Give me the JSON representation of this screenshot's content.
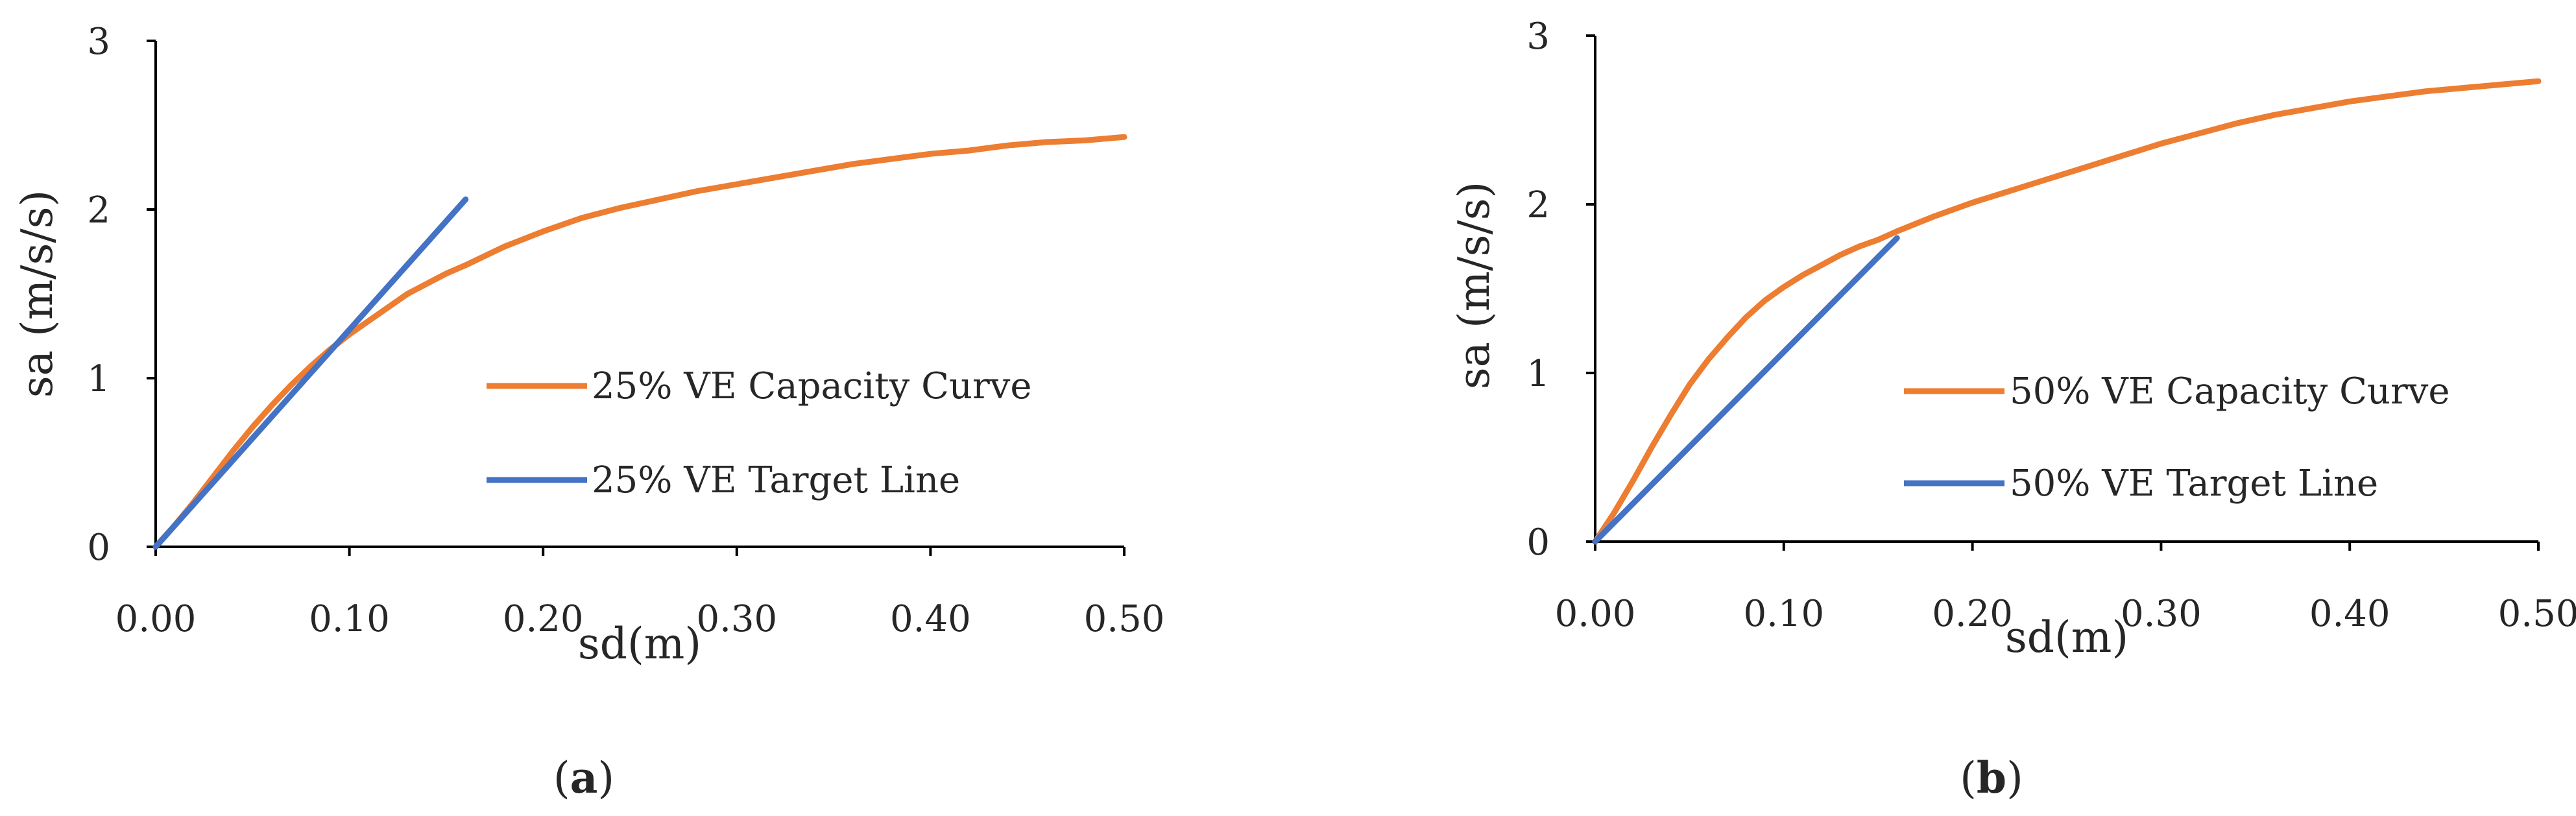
{
  "chart_data": [
    {
      "type": "line",
      "panel_label": "a",
      "xlabel": "sd(m)",
      "ylabel": "sa (m/s/s)",
      "xlim": [
        0,
        0.5
      ],
      "ylim": [
        0,
        3
      ],
      "x_ticks": [
        "0.00",
        "0.10",
        "0.20",
        "0.30",
        "0.40",
        "0.50"
      ],
      "y_ticks": [
        "0",
        "1",
        "2",
        "3"
      ],
      "grid": false,
      "legend_position": "center-right",
      "series": [
        {
          "name": "25% VE Capacity Curve",
          "color": "#ED7D31",
          "x": [
            0,
            0.01,
            0.02,
            0.03,
            0.04,
            0.05,
            0.06,
            0.07,
            0.08,
            0.09,
            0.1,
            0.11,
            0.12,
            0.13,
            0.14,
            0.15,
            0.16,
            0.18,
            0.2,
            0.22,
            0.24,
            0.26,
            0.28,
            0.3,
            0.32,
            0.34,
            0.36,
            0.38,
            0.4,
            0.42,
            0.44,
            0.46,
            0.48,
            0.5
          ],
          "y": [
            0,
            0.13,
            0.27,
            0.42,
            0.57,
            0.71,
            0.84,
            0.96,
            1.07,
            1.17,
            1.26,
            1.34,
            1.42,
            1.5,
            1.56,
            1.62,
            1.67,
            1.78,
            1.87,
            1.95,
            2.01,
            2.06,
            2.11,
            2.15,
            2.19,
            2.23,
            2.27,
            2.3,
            2.33,
            2.35,
            2.38,
            2.4,
            2.41,
            2.43
          ]
        },
        {
          "name": "25% VE Target Line",
          "color": "#4472C4",
          "x": [
            0,
            0.16
          ],
          "y": [
            0,
            2.06
          ]
        }
      ]
    },
    {
      "type": "line",
      "panel_label": "b",
      "xlabel": "sd(m)",
      "ylabel": "sa (m/s/s)",
      "xlim": [
        0,
        0.5
      ],
      "ylim": [
        0,
        3
      ],
      "x_ticks": [
        "0.00",
        "0.10",
        "0.20",
        "0.30",
        "0.40",
        "0.50"
      ],
      "y_ticks": [
        "0",
        "1",
        "2",
        "3"
      ],
      "grid": false,
      "legend_position": "center-right",
      "series": [
        {
          "name": "50% VE Capacity Curve",
          "color": "#ED7D31",
          "x": [
            0,
            0.01,
            0.02,
            0.03,
            0.04,
            0.05,
            0.06,
            0.07,
            0.08,
            0.09,
            0.1,
            0.11,
            0.12,
            0.13,
            0.14,
            0.15,
            0.16,
            0.18,
            0.2,
            0.22,
            0.24,
            0.26,
            0.28,
            0.3,
            0.32,
            0.34,
            0.36,
            0.38,
            0.4,
            0.42,
            0.44,
            0.46,
            0.48,
            0.5
          ],
          "y": [
            0,
            0.17,
            0.36,
            0.56,
            0.75,
            0.93,
            1.08,
            1.21,
            1.33,
            1.43,
            1.51,
            1.58,
            1.64,
            1.7,
            1.75,
            1.79,
            1.84,
            1.93,
            2.01,
            2.08,
            2.15,
            2.22,
            2.29,
            2.36,
            2.42,
            2.48,
            2.53,
            2.57,
            2.61,
            2.64,
            2.67,
            2.69,
            2.71,
            2.73
          ]
        },
        {
          "name": "50% VE Target Line",
          "color": "#4472C4",
          "x": [
            0,
            0.16
          ],
          "y": [
            0,
            1.8
          ]
        }
      ]
    }
  ]
}
